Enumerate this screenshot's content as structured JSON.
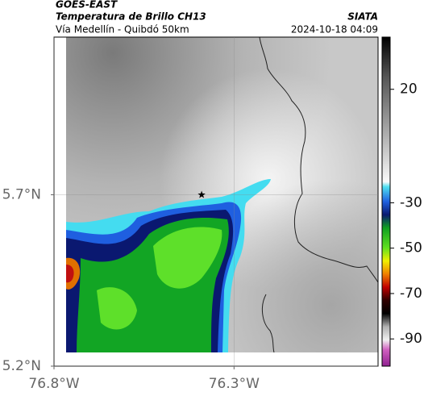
{
  "map_data": {
    "title": "GOES-EAST",
    "subtitle": "Temperatura de Brillo CH13",
    "region": "Vía Medellín - Quibdó 50km",
    "source": "SIATA",
    "datetime": "2024-10-18 04:09",
    "xlim": [
      -76.8,
      -75.9
    ],
    "ylim": [
      5.2,
      6.16
    ],
    "xticks": [
      {
        "value": -76.8,
        "label": "76.8°W"
      },
      {
        "value": -76.3,
        "label": "76.3°W"
      }
    ],
    "yticks": [
      {
        "value": 5.7,
        "label": "5.7°N"
      },
      {
        "value": 5.2,
        "label": "5.2°N"
      }
    ],
    "clim": [
      -102,
      43
    ],
    "cticks": [
      20,
      -30,
      -50,
      -70,
      -90
    ],
    "marker": {
      "lon": -76.39,
      "lat": 5.7
    }
  }
}
